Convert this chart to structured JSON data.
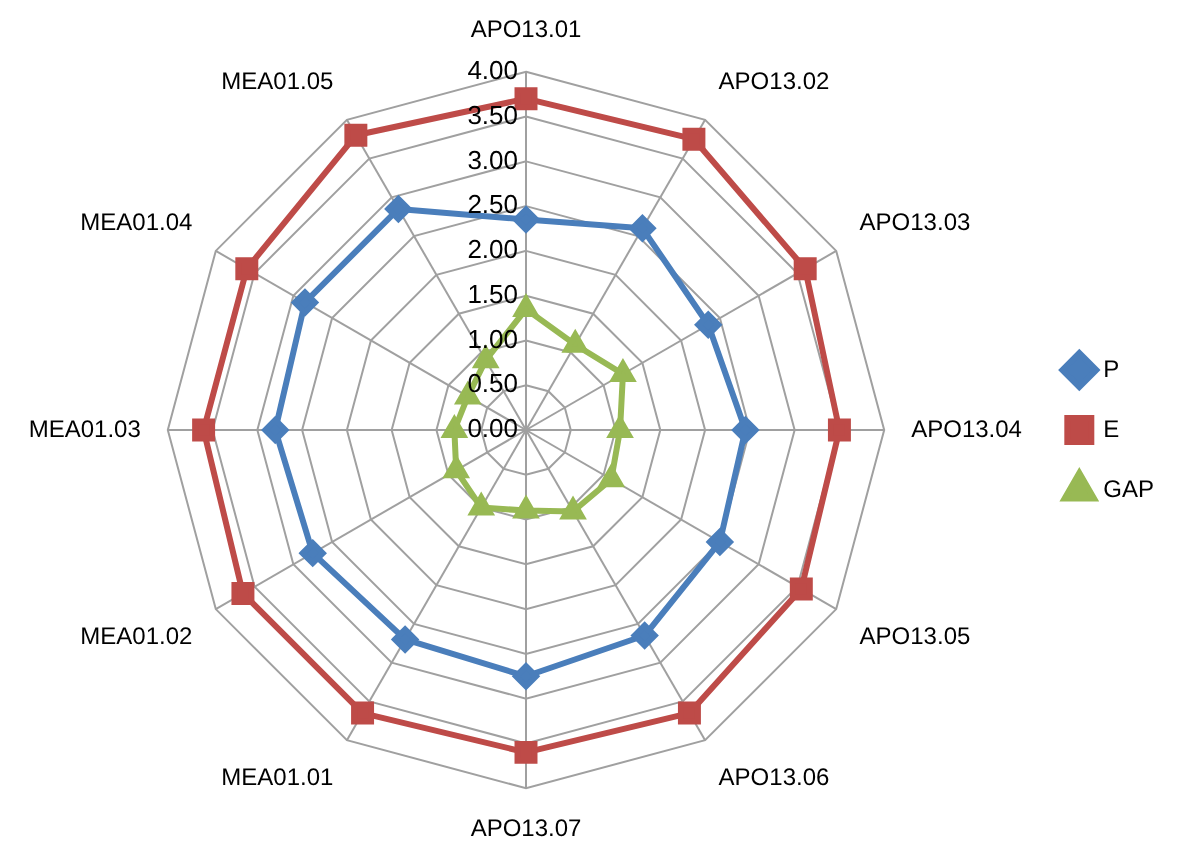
{
  "chart_data": {
    "type": "radar",
    "categories": [
      "APO13.01",
      "APO13.02",
      "APO13.03",
      "APO13.04",
      "APO13.05",
      "APO13.06",
      "APO13.07",
      "MEA01.01",
      "MEA01.02",
      "MEA01.03",
      "MEA01.04",
      "MEA01.05"
    ],
    "series": [
      {
        "name": "P",
        "color": "#4a7ebb",
        "marker": "diamond",
        "values": [
          2.35,
          2.6,
          2.35,
          2.45,
          2.5,
          2.65,
          2.75,
          2.7,
          2.75,
          2.8,
          2.85,
          2.85
        ]
      },
      {
        "name": "E",
        "color": "#be4b48",
        "marker": "square",
        "values": [
          3.7,
          3.75,
          3.6,
          3.5,
          3.55,
          3.65,
          3.6,
          3.65,
          3.65,
          3.6,
          3.6,
          3.8
        ]
      },
      {
        "name": "GAP",
        "color": "#98b954",
        "marker": "triangle",
        "values": [
          1.35,
          1.1,
          1.25,
          1.05,
          1.1,
          1.05,
          0.9,
          1.0,
          0.9,
          0.8,
          0.75,
          0.9
        ]
      }
    ],
    "ylim": [
      0,
      4
    ],
    "yticks": [
      {
        "value": 0,
        "label": "0.00"
      },
      {
        "value": 0.5,
        "label": "0.50"
      },
      {
        "value": 1,
        "label": "1.00"
      },
      {
        "value": 1.5,
        "label": "1.50"
      },
      {
        "value": 2,
        "label": "2.00"
      },
      {
        "value": 2.5,
        "label": "2.50"
      },
      {
        "value": 3,
        "label": "3.00"
      },
      {
        "value": 3.5,
        "label": "3.50"
      },
      {
        "value": 4,
        "label": "4.00"
      }
    ],
    "grid": true,
    "legend": "right"
  }
}
